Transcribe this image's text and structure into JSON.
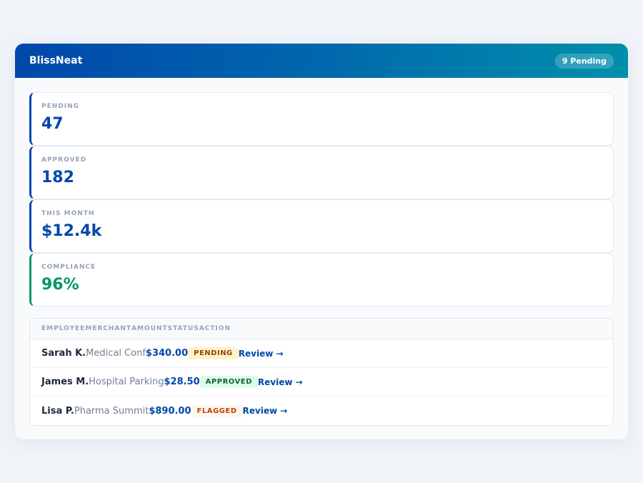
{
  "header": {
    "brand": "BlissNeat",
    "badge": "9 Pending"
  },
  "stats": [
    {
      "label": "PENDING",
      "value": "47"
    },
    {
      "label": "APPROVED",
      "value": "182"
    },
    {
      "label": "THIS MONTH",
      "value": "$12.4k"
    },
    {
      "label": "COMPLIANCE",
      "value": "96%"
    }
  ],
  "table": {
    "columns": [
      "EMPLOYEE",
      "MERCHANT",
      "AMOUNT",
      "STATUS",
      "ACTION"
    ],
    "rows": [
      {
        "employee": "Sarah K.",
        "merchant": "Medical Conf",
        "amount": "$340.00",
        "status": "PENDING",
        "action": "Review →"
      },
      {
        "employee": "James M.",
        "merchant": "Hospital Parking",
        "amount": "$28.50",
        "status": "APPROVED",
        "action": "Review →"
      },
      {
        "employee": "Lisa P.",
        "merchant": "Pharma Summit",
        "amount": "$890.00",
        "status": "FLAGGED",
        "action": "Review →"
      }
    ]
  },
  "colors": {
    "primary": "#0047ab",
    "accent_teal": "#0090ab",
    "success": "#059669"
  }
}
